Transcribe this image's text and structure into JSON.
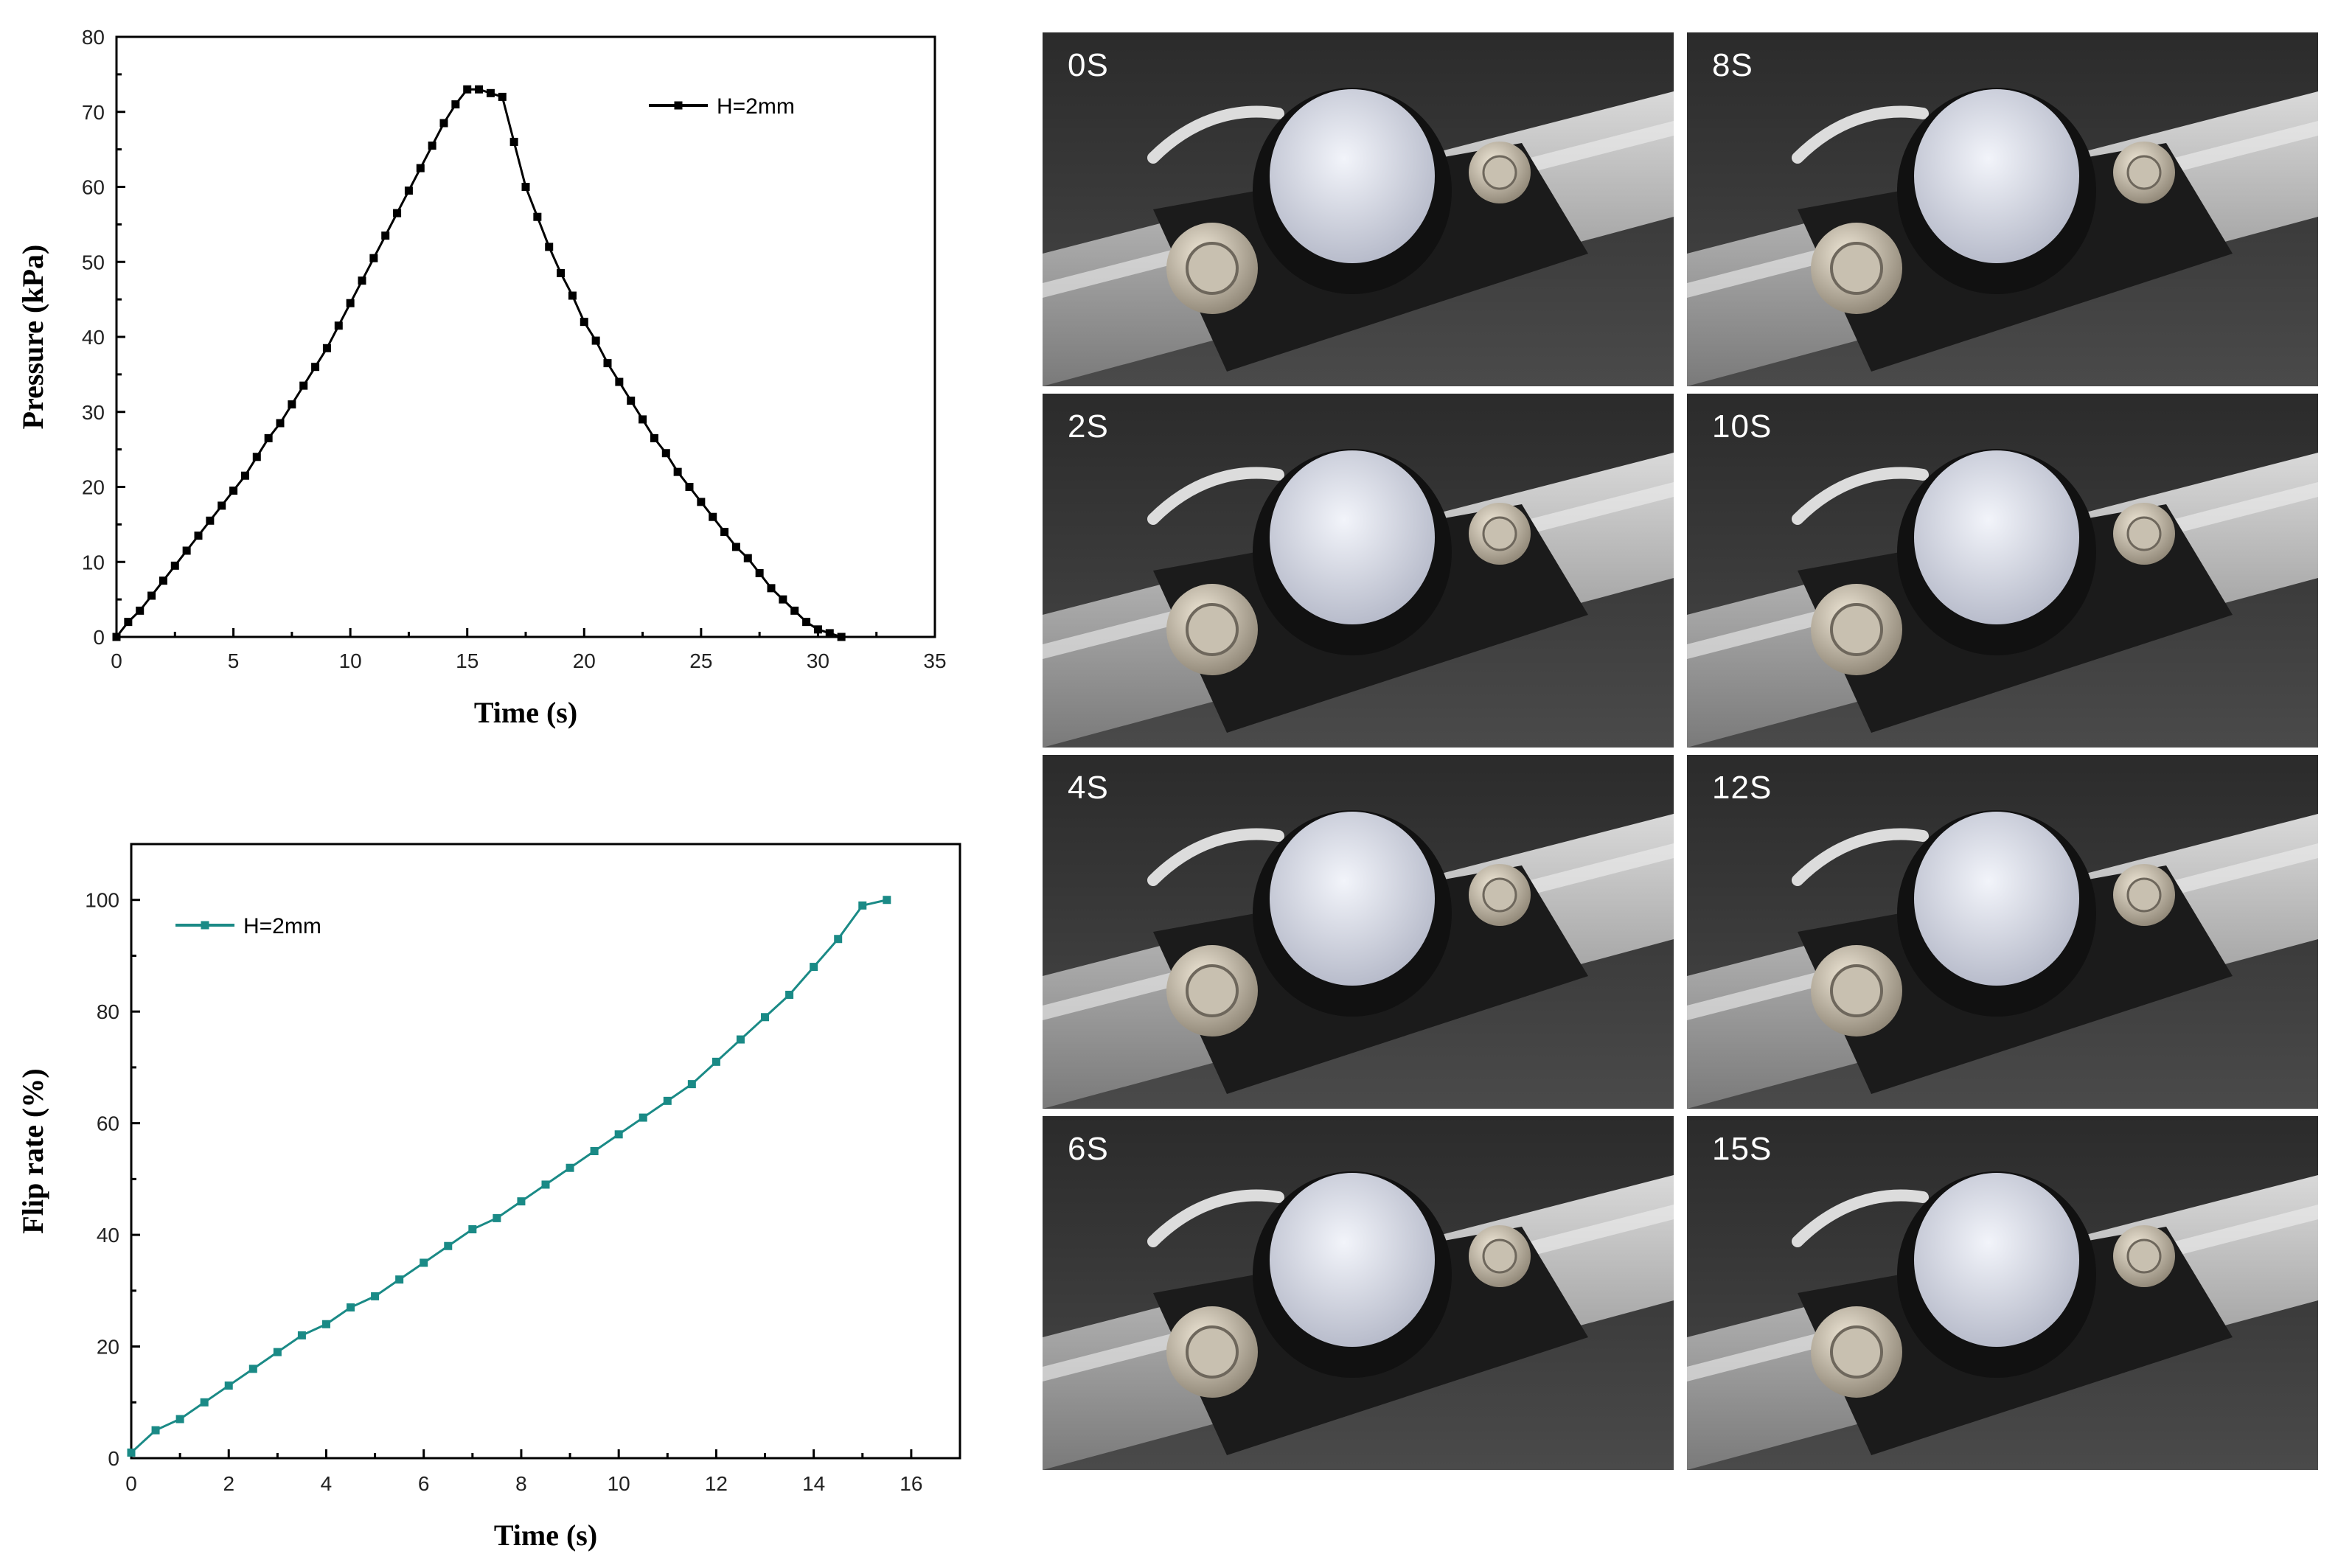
{
  "chart_data": [
    {
      "type": "scatter",
      "title": "",
      "xlabel": "Time (s)",
      "ylabel": "Pressure (kPa)",
      "xlim": [
        0,
        35
      ],
      "ylim": [
        0,
        80
      ],
      "xticks": [
        0,
        5,
        10,
        15,
        20,
        25,
        30,
        35
      ],
      "yticks": [
        0,
        10,
        20,
        30,
        40,
        50,
        60,
        70,
        80
      ],
      "grid": false,
      "legend": "top-right",
      "series": [
        {
          "name": "H=2mm",
          "color": "#000000",
          "marker": "square",
          "x": [
            0,
            0.5,
            1,
            1.5,
            2,
            2.5,
            3,
            3.5,
            4,
            4.5,
            5,
            5.5,
            6,
            6.5,
            7,
            7.5,
            8,
            8.5,
            9,
            9.5,
            10,
            10.5,
            11,
            11.5,
            12,
            12.5,
            13,
            13.5,
            14,
            14.5,
            15,
            15.5,
            16,
            16.5,
            17,
            17.5,
            18,
            18.5,
            19,
            19.5,
            20,
            20.5,
            21,
            21.5,
            22,
            22.5,
            23,
            23.5,
            24,
            24.5,
            25,
            25.5,
            26,
            26.5,
            27,
            27.5,
            28,
            28.5,
            29,
            29.5,
            30,
            30.5,
            31
          ],
          "y": [
            0,
            2,
            3.5,
            5.5,
            7.5,
            9.5,
            11.5,
            13.5,
            15.5,
            17.5,
            19.5,
            21.5,
            24,
            26.5,
            28.5,
            31,
            33.5,
            36,
            38.5,
            41.5,
            44.5,
            47.5,
            50.5,
            53.5,
            56.5,
            59.5,
            62.5,
            65.5,
            68.5,
            71,
            73,
            73,
            72.5,
            72,
            66,
            60,
            56,
            52,
            48.5,
            45.5,
            42,
            39.5,
            36.5,
            34,
            31.5,
            29,
            26.5,
            24.5,
            22,
            20,
            18,
            16,
            14,
            12,
            10.5,
            8.5,
            6.5,
            5,
            3.5,
            2,
            1,
            0.5,
            0
          ]
        }
      ]
    },
    {
      "type": "scatter",
      "title": "",
      "xlabel": "Time (s)",
      "ylabel": "Flip rate (%)",
      "xlim": [
        0,
        17
      ],
      "ylim": [
        0,
        110
      ],
      "xticks": [
        0,
        2,
        4,
        6,
        8,
        10,
        12,
        14,
        16
      ],
      "yticks": [
        0,
        20,
        40,
        60,
        80,
        100
      ],
      "grid": false,
      "legend": "top-left",
      "series": [
        {
          "name": "H=2mm",
          "color": "#1a8a86",
          "marker": "square",
          "x": [
            0,
            0.5,
            1,
            1.5,
            2,
            2.5,
            3,
            3.5,
            4,
            4.5,
            5,
            5.5,
            6,
            6.5,
            7,
            7.5,
            8,
            8.5,
            9,
            9.5,
            10,
            10.5,
            11,
            11.5,
            12,
            12.5,
            13,
            13.5,
            14,
            14.5,
            15,
            15.5
          ],
          "y": [
            1,
            5,
            7,
            10,
            13,
            16,
            19,
            22,
            24,
            27,
            29,
            32,
            35,
            38,
            41,
            43,
            46,
            49,
            52,
            55,
            58,
            61,
            64,
            67,
            71,
            75,
            79,
            83,
            88,
            93,
            99,
            100
          ]
        }
      ]
    }
  ],
  "photos": [
    {
      "label": "0S"
    },
    {
      "label": "8S"
    },
    {
      "label": "2S"
    },
    {
      "label": "10S"
    },
    {
      "label": "4S"
    },
    {
      "label": "12S"
    },
    {
      "label": "6S"
    },
    {
      "label": "15S"
    }
  ]
}
